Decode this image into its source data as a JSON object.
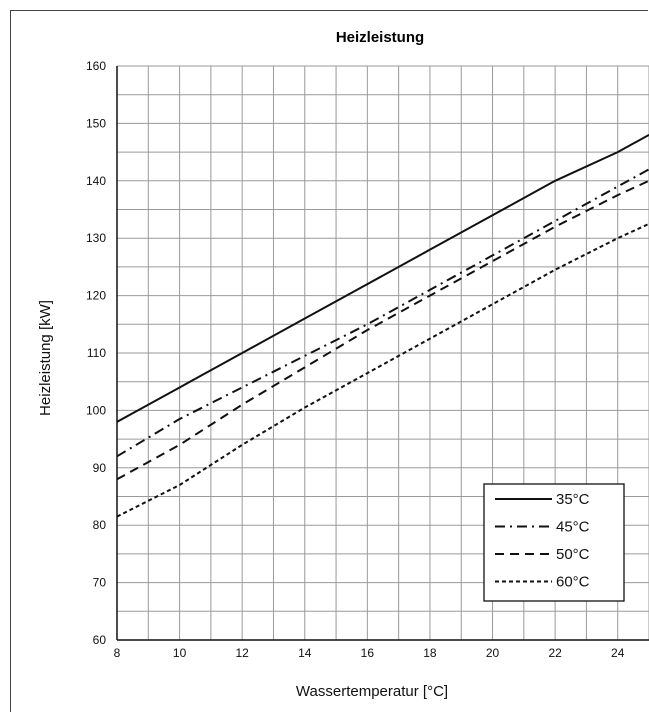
{
  "chart_data": {
    "type": "line",
    "title": "Heizleistung",
    "xlabel": "Wassertemperatur [°C]",
    "ylabel": "Heizleistung [kW]",
    "xlim": [
      8,
      25
    ],
    "ylim": [
      60,
      160
    ],
    "xticks": [
      8,
      10,
      12,
      14,
      16,
      18,
      20,
      22,
      24
    ],
    "yticks": [
      60,
      70,
      80,
      90,
      100,
      110,
      120,
      130,
      140,
      150,
      160
    ],
    "grid": true,
    "legend_position": "bottom-right",
    "series": [
      {
        "name": "35°C",
        "style": "solid",
        "x": [
          8,
          10,
          12,
          14,
          16,
          18,
          20,
          22,
          24,
          25
        ],
        "y": [
          98,
          104,
          110,
          116,
          122,
          128,
          134,
          140,
          145,
          148
        ]
      },
      {
        "name": "45°C",
        "style": "dashdot",
        "x": [
          8,
          10,
          12,
          14,
          16,
          18,
          20,
          22,
          24,
          25
        ],
        "y": [
          92,
          98.5,
          104,
          109.5,
          115,
          121,
          127,
          133,
          139,
          142
        ]
      },
      {
        "name": "50°C",
        "style": "dashed",
        "x": [
          8,
          10,
          12,
          14,
          16,
          18,
          20,
          22,
          24,
          25
        ],
        "y": [
          88,
          94,
          101,
          107.5,
          114,
          120,
          126,
          132,
          137.5,
          140
        ]
      },
      {
        "name": "60°C",
        "style": "dotted",
        "x": [
          8,
          10,
          12,
          14,
          16,
          18,
          20,
          22,
          24,
          25
        ],
        "y": [
          81.5,
          87,
          94,
          100.5,
          106.5,
          112.5,
          118.5,
          124.5,
          130,
          132.5
        ]
      }
    ]
  }
}
